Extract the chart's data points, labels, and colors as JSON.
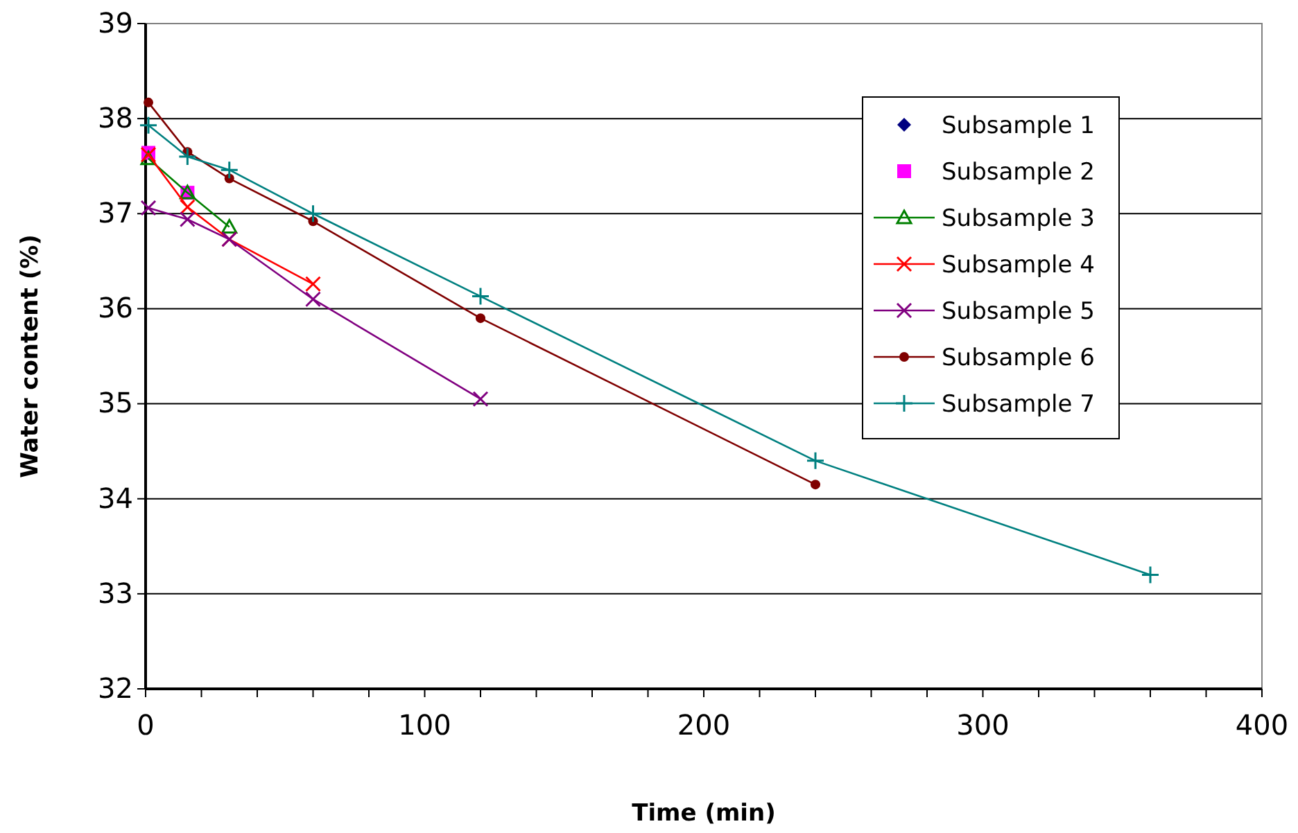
{
  "chart_data": {
    "type": "line",
    "xlabel": "Time (min)",
    "ylabel": "Water content (%)",
    "xlim": [
      0,
      400
    ],
    "ylim": [
      32,
      39
    ],
    "xticks": [
      0,
      {
        "value": 20,
        "label": null
      },
      {
        "value": 40,
        "label": null
      },
      {
        "value": 60,
        "label": null
      },
      {
        "value": 80,
        "label": null
      },
      100,
      {
        "value": 120,
        "label": null
      },
      {
        "value": 140,
        "label": null
      },
      {
        "value": 160,
        "label": null
      },
      {
        "value": 180,
        "label": null
      },
      200,
      {
        "value": 220,
        "label": null
      },
      {
        "value": 240,
        "label": null
      },
      {
        "value": 260,
        "label": null
      },
      {
        "value": 280,
        "label": null
      },
      300,
      {
        "value": 320,
        "label": null
      },
      {
        "value": 340,
        "label": null
      },
      {
        "value": 360,
        "label": null
      },
      {
        "value": 380,
        "label": null
      },
      400
    ],
    "yticks": [
      32,
      33,
      34,
      35,
      36,
      37,
      38,
      39
    ],
    "grid": "y",
    "legend": "top right",
    "series": [
      {
        "name": "Subsample 1",
        "type": "scatter",
        "color": "#000080",
        "marker": "diamond"
      },
      {
        "name": "Subsample 2",
        "type": "scatter",
        "color": "#ff00ff",
        "marker": "square",
        "x": [
          1,
          15
        ],
        "values": [
          37.64,
          37.22
        ]
      },
      {
        "name": "Subsample 3",
        "color": "#008000",
        "marker": "triangle",
        "line_style": "solid",
        "x": [
          1,
          15,
          30
        ],
        "values": [
          37.58,
          37.22,
          36.86
        ]
      },
      {
        "name": "Subsample 4",
        "color": "#ff0000",
        "marker": "cross",
        "line_style": "solid",
        "x": [
          1,
          15,
          30,
          60
        ],
        "values": [
          37.62,
          37.07,
          36.73,
          36.26
        ]
      },
      {
        "name": "Subsample 5",
        "color": "#800080",
        "marker": "cross",
        "line_style": "solid",
        "x": [
          1,
          15,
          30,
          60,
          120
        ],
        "values": [
          37.06,
          36.94,
          36.73,
          36.1,
          35.05
        ]
      },
      {
        "name": "Subsample 6",
        "color": "#800000",
        "marker": "circle",
        "line_style": "solid",
        "x": [
          1,
          15,
          30,
          60,
          120,
          240
        ],
        "values": [
          38.17,
          37.65,
          37.37,
          36.92,
          35.9,
          34.15
        ]
      },
      {
        "name": "Subsample 7",
        "color": "#008080",
        "marker": "plus",
        "line_style": "solid",
        "x": [
          1,
          15,
          30,
          60,
          120,
          240,
          360
        ],
        "values": [
          37.93,
          37.6,
          37.46,
          37.0,
          36.13,
          34.4,
          33.2
        ]
      }
    ]
  }
}
